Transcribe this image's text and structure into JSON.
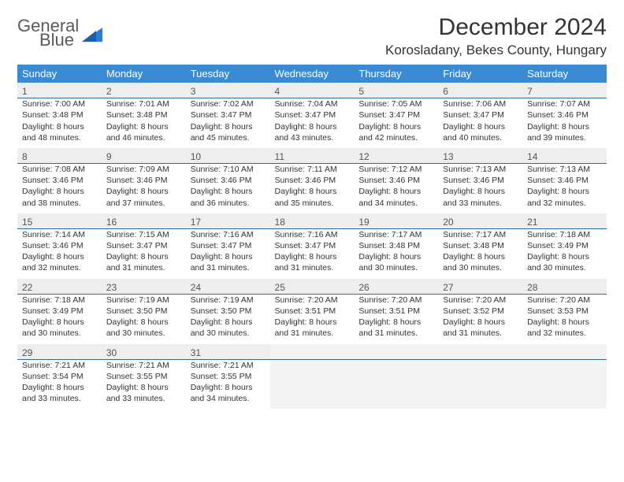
{
  "logo": {
    "line1": "General",
    "line2": "Blue",
    "tri_color": "#2e7cd6"
  },
  "header": {
    "month_title": "December 2024",
    "location": "Korosladany, Bekes County, Hungary"
  },
  "style": {
    "header_bg": "#3b8bd4",
    "header_fg": "#ffffff",
    "daynum_bg": "#eeeeee",
    "cell_border": "#2e6da4",
    "empty_bg": "#f4f4f4",
    "body_font_size": 10.5,
    "daynum_font_size": 12,
    "th_font_size": 13
  },
  "weekdays": [
    "Sunday",
    "Monday",
    "Tuesday",
    "Wednesday",
    "Thursday",
    "Friday",
    "Saturday"
  ],
  "weeks": [
    [
      {
        "n": "1",
        "sr": "Sunrise: 7:00 AM",
        "ss": "Sunset: 3:48 PM",
        "d1": "Daylight: 8 hours",
        "d2": "and 48 minutes."
      },
      {
        "n": "2",
        "sr": "Sunrise: 7:01 AM",
        "ss": "Sunset: 3:48 PM",
        "d1": "Daylight: 8 hours",
        "d2": "and 46 minutes."
      },
      {
        "n": "3",
        "sr": "Sunrise: 7:02 AM",
        "ss": "Sunset: 3:47 PM",
        "d1": "Daylight: 8 hours",
        "d2": "and 45 minutes."
      },
      {
        "n": "4",
        "sr": "Sunrise: 7:04 AM",
        "ss": "Sunset: 3:47 PM",
        "d1": "Daylight: 8 hours",
        "d2": "and 43 minutes."
      },
      {
        "n": "5",
        "sr": "Sunrise: 7:05 AM",
        "ss": "Sunset: 3:47 PM",
        "d1": "Daylight: 8 hours",
        "d2": "and 42 minutes."
      },
      {
        "n": "6",
        "sr": "Sunrise: 7:06 AM",
        "ss": "Sunset: 3:47 PM",
        "d1": "Daylight: 8 hours",
        "d2": "and 40 minutes."
      },
      {
        "n": "7",
        "sr": "Sunrise: 7:07 AM",
        "ss": "Sunset: 3:46 PM",
        "d1": "Daylight: 8 hours",
        "d2": "and 39 minutes."
      }
    ],
    [
      {
        "n": "8",
        "sr": "Sunrise: 7:08 AM",
        "ss": "Sunset: 3:46 PM",
        "d1": "Daylight: 8 hours",
        "d2": "and 38 minutes."
      },
      {
        "n": "9",
        "sr": "Sunrise: 7:09 AM",
        "ss": "Sunset: 3:46 PM",
        "d1": "Daylight: 8 hours",
        "d2": "and 37 minutes."
      },
      {
        "n": "10",
        "sr": "Sunrise: 7:10 AM",
        "ss": "Sunset: 3:46 PM",
        "d1": "Daylight: 8 hours",
        "d2": "and 36 minutes."
      },
      {
        "n": "11",
        "sr": "Sunrise: 7:11 AM",
        "ss": "Sunset: 3:46 PM",
        "d1": "Daylight: 8 hours",
        "d2": "and 35 minutes."
      },
      {
        "n": "12",
        "sr": "Sunrise: 7:12 AM",
        "ss": "Sunset: 3:46 PM",
        "d1": "Daylight: 8 hours",
        "d2": "and 34 minutes."
      },
      {
        "n": "13",
        "sr": "Sunrise: 7:13 AM",
        "ss": "Sunset: 3:46 PM",
        "d1": "Daylight: 8 hours",
        "d2": "and 33 minutes."
      },
      {
        "n": "14",
        "sr": "Sunrise: 7:13 AM",
        "ss": "Sunset: 3:46 PM",
        "d1": "Daylight: 8 hours",
        "d2": "and 32 minutes."
      }
    ],
    [
      {
        "n": "15",
        "sr": "Sunrise: 7:14 AM",
        "ss": "Sunset: 3:46 PM",
        "d1": "Daylight: 8 hours",
        "d2": "and 32 minutes."
      },
      {
        "n": "16",
        "sr": "Sunrise: 7:15 AM",
        "ss": "Sunset: 3:47 PM",
        "d1": "Daylight: 8 hours",
        "d2": "and 31 minutes."
      },
      {
        "n": "17",
        "sr": "Sunrise: 7:16 AM",
        "ss": "Sunset: 3:47 PM",
        "d1": "Daylight: 8 hours",
        "d2": "and 31 minutes."
      },
      {
        "n": "18",
        "sr": "Sunrise: 7:16 AM",
        "ss": "Sunset: 3:47 PM",
        "d1": "Daylight: 8 hours",
        "d2": "and 31 minutes."
      },
      {
        "n": "19",
        "sr": "Sunrise: 7:17 AM",
        "ss": "Sunset: 3:48 PM",
        "d1": "Daylight: 8 hours",
        "d2": "and 30 minutes."
      },
      {
        "n": "20",
        "sr": "Sunrise: 7:17 AM",
        "ss": "Sunset: 3:48 PM",
        "d1": "Daylight: 8 hours",
        "d2": "and 30 minutes."
      },
      {
        "n": "21",
        "sr": "Sunrise: 7:18 AM",
        "ss": "Sunset: 3:49 PM",
        "d1": "Daylight: 8 hours",
        "d2": "and 30 minutes."
      }
    ],
    [
      {
        "n": "22",
        "sr": "Sunrise: 7:18 AM",
        "ss": "Sunset: 3:49 PM",
        "d1": "Daylight: 8 hours",
        "d2": "and 30 minutes."
      },
      {
        "n": "23",
        "sr": "Sunrise: 7:19 AM",
        "ss": "Sunset: 3:50 PM",
        "d1": "Daylight: 8 hours",
        "d2": "and 30 minutes."
      },
      {
        "n": "24",
        "sr": "Sunrise: 7:19 AM",
        "ss": "Sunset: 3:50 PM",
        "d1": "Daylight: 8 hours",
        "d2": "and 30 minutes."
      },
      {
        "n": "25",
        "sr": "Sunrise: 7:20 AM",
        "ss": "Sunset: 3:51 PM",
        "d1": "Daylight: 8 hours",
        "d2": "and 31 minutes."
      },
      {
        "n": "26",
        "sr": "Sunrise: 7:20 AM",
        "ss": "Sunset: 3:51 PM",
        "d1": "Daylight: 8 hours",
        "d2": "and 31 minutes."
      },
      {
        "n": "27",
        "sr": "Sunrise: 7:20 AM",
        "ss": "Sunset: 3:52 PM",
        "d1": "Daylight: 8 hours",
        "d2": "and 31 minutes."
      },
      {
        "n": "28",
        "sr": "Sunrise: 7:20 AM",
        "ss": "Sunset: 3:53 PM",
        "d1": "Daylight: 8 hours",
        "d2": "and 32 minutes."
      }
    ],
    [
      {
        "n": "29",
        "sr": "Sunrise: 7:21 AM",
        "ss": "Sunset: 3:54 PM",
        "d1": "Daylight: 8 hours",
        "d2": "and 33 minutes."
      },
      {
        "n": "30",
        "sr": "Sunrise: 7:21 AM",
        "ss": "Sunset: 3:55 PM",
        "d1": "Daylight: 8 hours",
        "d2": "and 33 minutes."
      },
      {
        "n": "31",
        "sr": "Sunrise: 7:21 AM",
        "ss": "Sunset: 3:55 PM",
        "d1": "Daylight: 8 hours",
        "d2": "and 34 minutes."
      },
      null,
      null,
      null,
      null
    ]
  ]
}
